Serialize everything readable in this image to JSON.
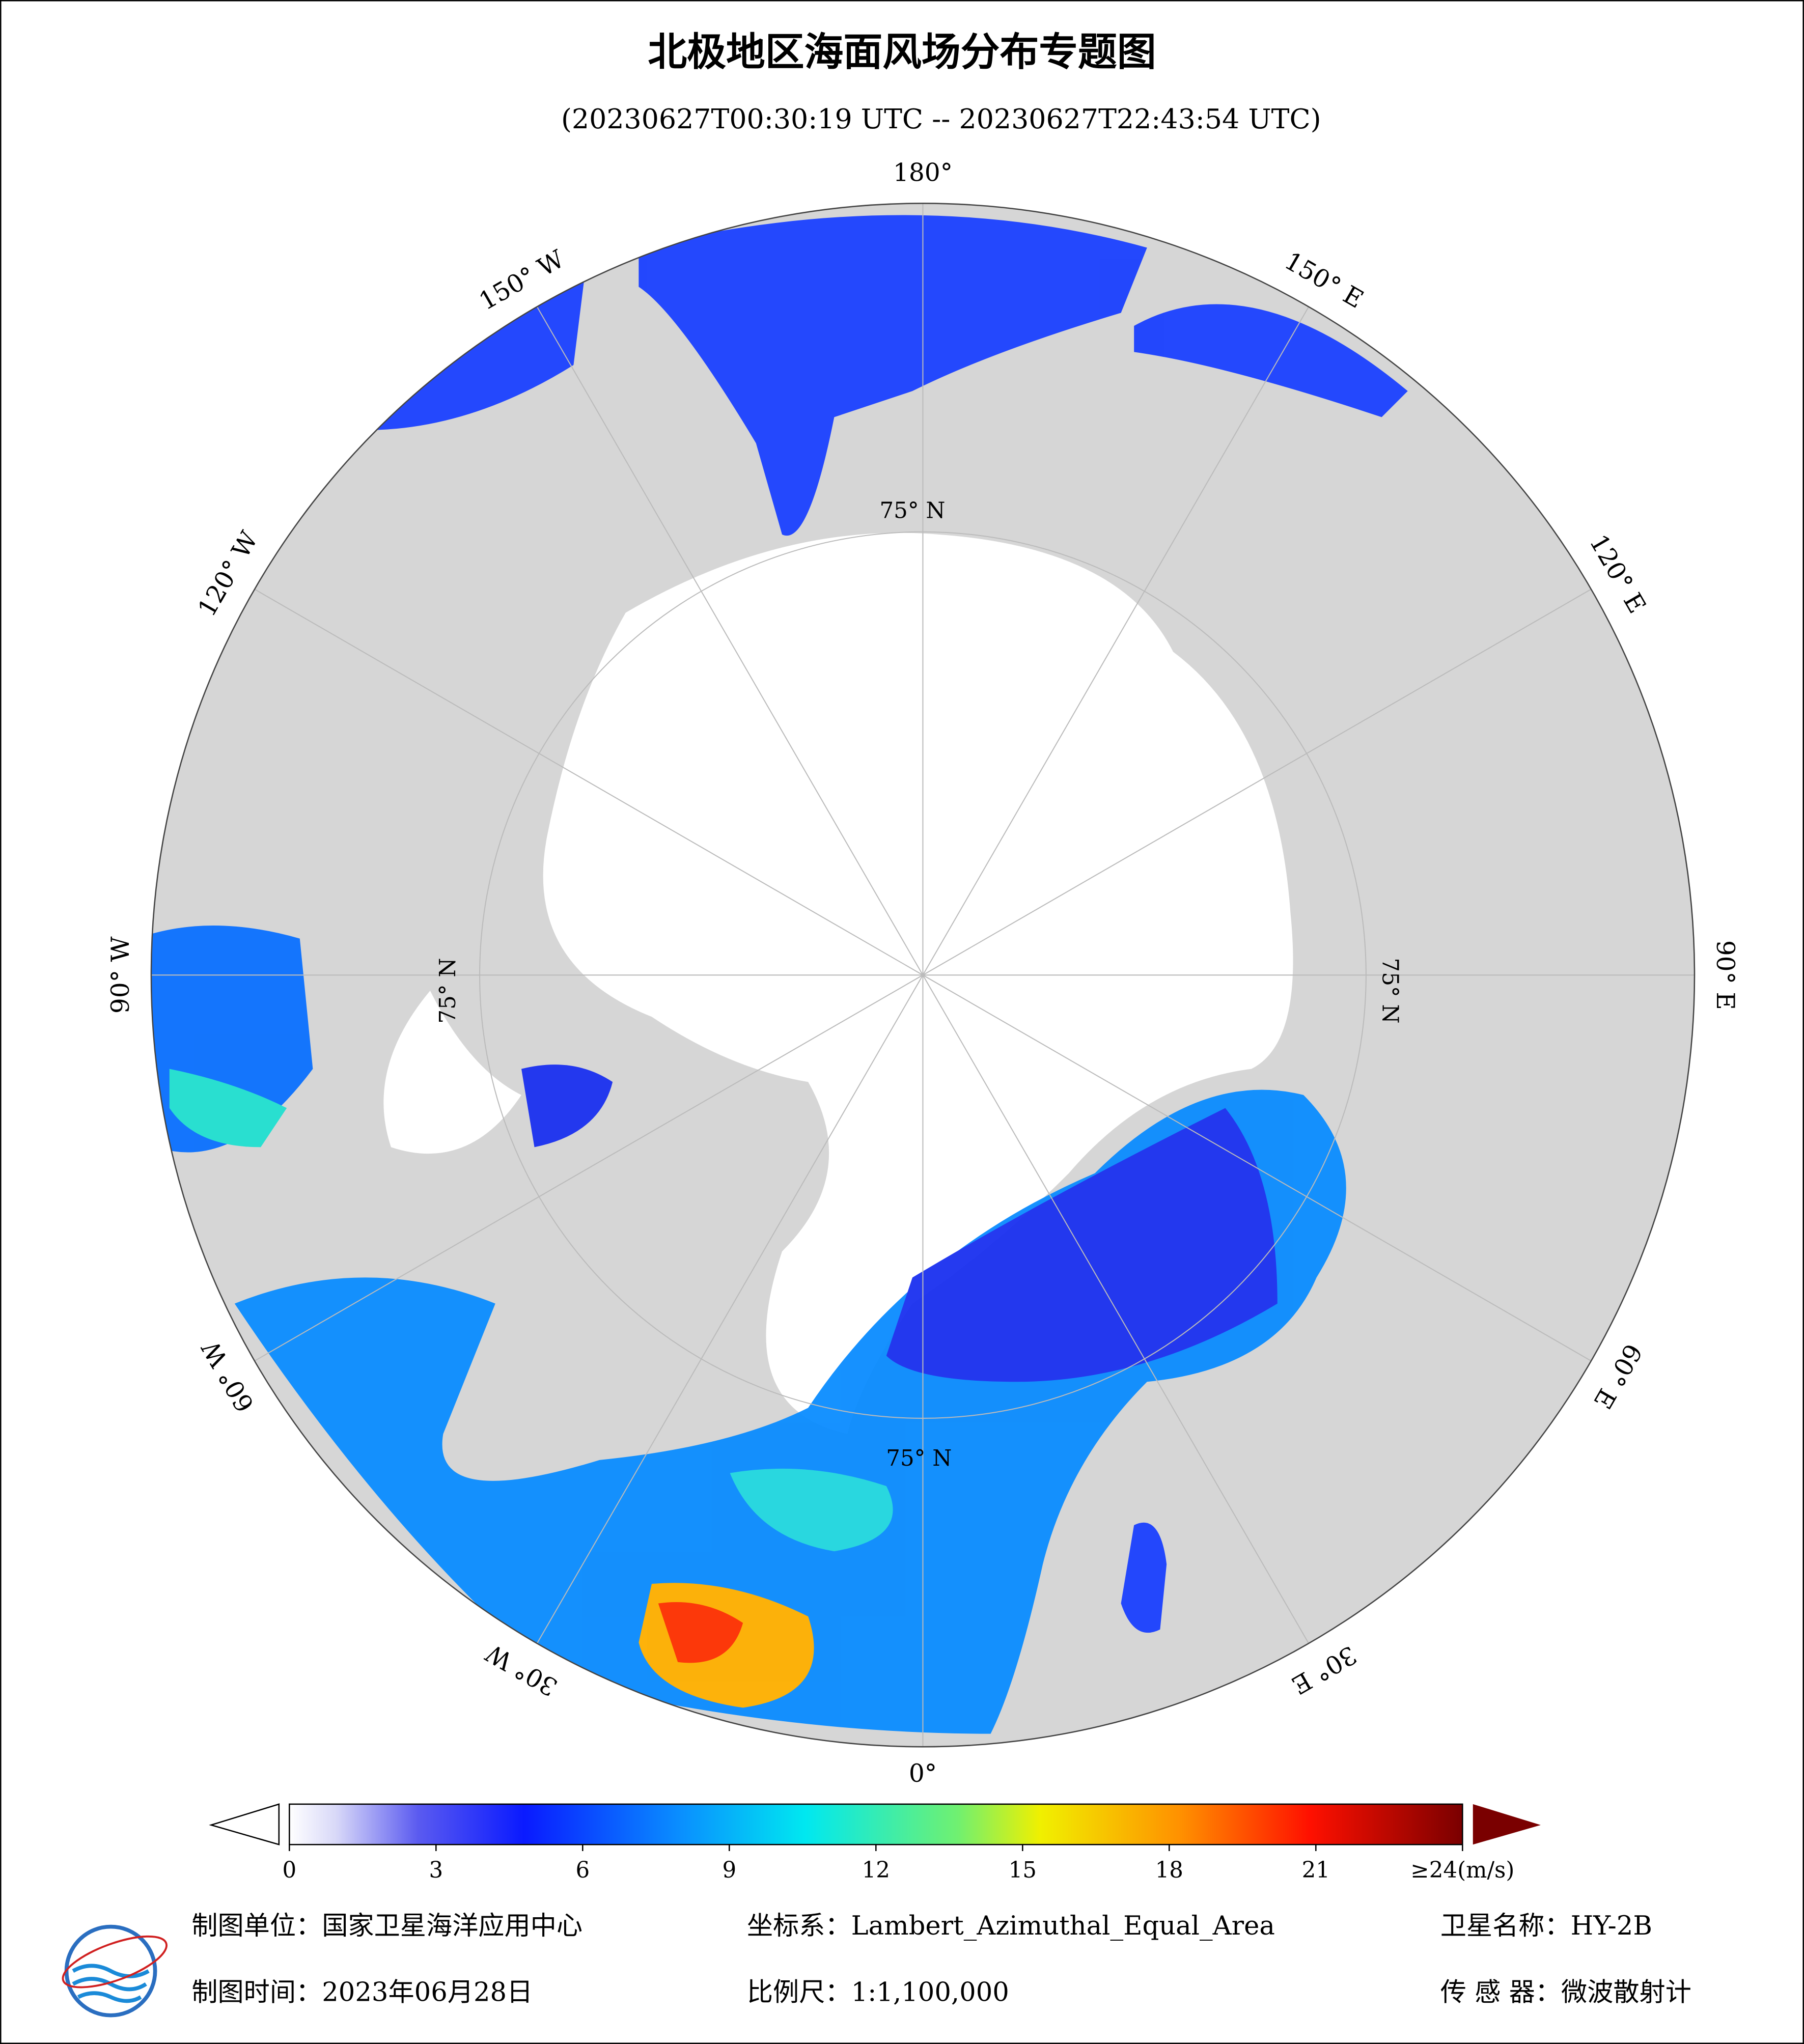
{
  "header": {
    "title": "北极地区海面风场分布专题图",
    "subtitle": "(20230627T00:30:19 UTC -- 20230627T22:43:54 UTC)"
  },
  "map": {
    "lon_labels": [
      {
        "lon": 180,
        "label": "180°"
      },
      {
        "lon": -150,
        "label": "150° W"
      },
      {
        "lon": -120,
        "label": "120° W"
      },
      {
        "lon": -90,
        "label": "90° W"
      },
      {
        "lon": -60,
        "label": "60° W"
      },
      {
        "lon": -30,
        "label": "30° W"
      },
      {
        "lon": 0,
        "label": "0°"
      },
      {
        "lon": 30,
        "label": "30° E"
      },
      {
        "lon": 60,
        "label": "60° E"
      },
      {
        "lon": 90,
        "label": "90° E"
      },
      {
        "lon": 120,
        "label": "120° E"
      },
      {
        "lon": 150,
        "label": "150° E"
      }
    ],
    "lat_labels": [
      "75° N",
      "75° N",
      "75° N",
      "75° N"
    ]
  },
  "colorbar": {
    "range": [
      0,
      24
    ],
    "ticks": [
      0,
      3,
      6,
      9,
      12,
      15,
      18,
      21
    ],
    "max_label": "≥24(m/s)"
  },
  "footer": {
    "unit": "制图单位：国家卫星海洋应用中心",
    "projection": "坐标系：Lambert_Azimuthal_Equal_Area",
    "satellite": "卫星名称：HY-2B",
    "date": "制图时间：2023年06月28日",
    "scale": "比例尺：1:1,100,000",
    "sensor": "传 感 器：微波散射计"
  }
}
